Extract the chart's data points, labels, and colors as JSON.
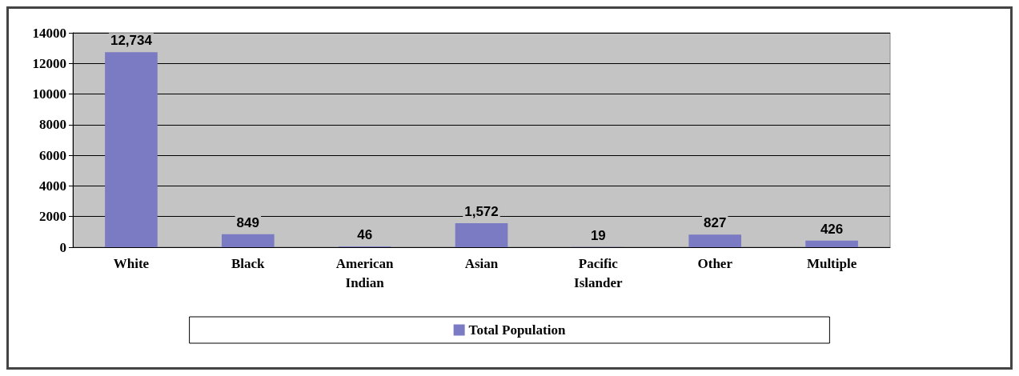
{
  "chart_data": {
    "type": "bar",
    "categories": [
      "White",
      "Black",
      "American\nIndian",
      "Asian",
      "Pacific\nIslander",
      "Other",
      "Multiple"
    ],
    "series": [
      {
        "name": "Total Population",
        "color": "#7b7bc4",
        "values": [
          12734,
          849,
          46,
          1572,
          19,
          827,
          426
        ],
        "value_labels": [
          "12,734",
          "849",
          "46",
          "1,572",
          "19",
          "827",
          "426"
        ]
      }
    ],
    "ylim": [
      0,
      14000
    ],
    "yticks": [
      0,
      2000,
      4000,
      6000,
      8000,
      10000,
      12000,
      14000
    ],
    "grid": "y",
    "legend": "bottom"
  }
}
